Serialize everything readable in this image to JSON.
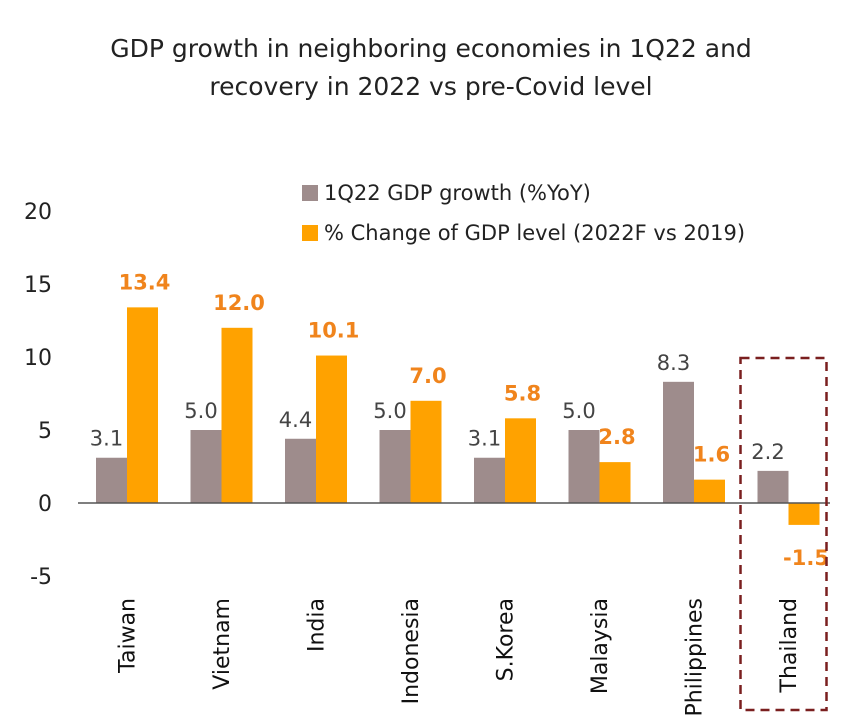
{
  "colors": {
    "series1": "#9e8c8c",
    "series2": "#ffa200",
    "label2": "#f0841c",
    "highlight_box": "#7a1f1f"
  },
  "chart_data": {
    "type": "bar",
    "title_line1": "GDP growth in neighboring economies in 1Q22 and",
    "title_line2": "recovery in 2022 vs pre-Covid level",
    "categories": [
      "Taiwan",
      "Vietnam",
      "India",
      "Indonesia",
      "S.Korea",
      "Malaysia",
      "Philippines",
      "Thailand"
    ],
    "series": [
      {
        "name": "1Q22 GDP growth (%YoY)",
        "values": [
          3.1,
          5.0,
          4.4,
          5.0,
          3.1,
          5.0,
          8.3,
          2.2
        ],
        "labels": [
          "3.1",
          "5.0",
          "4.4",
          "5.0",
          "3.1",
          "5.0",
          "8.3",
          "2.2"
        ]
      },
      {
        "name": "% Change of GDP level (2022F vs 2019)",
        "values": [
          13.4,
          12.0,
          10.1,
          7.0,
          5.8,
          2.8,
          1.6,
          -1.5
        ],
        "labels": [
          "13.4",
          "12.0",
          "10.1",
          "7.0",
          "5.8",
          "2.8",
          "1.6",
          "-1.5"
        ]
      }
    ],
    "yticks": [
      20,
      15,
      10,
      5,
      0,
      -5
    ],
    "ylim": [
      -5,
      20
    ],
    "grid": false,
    "legend_position": "top-right",
    "highlighted_category": "Thailand"
  }
}
